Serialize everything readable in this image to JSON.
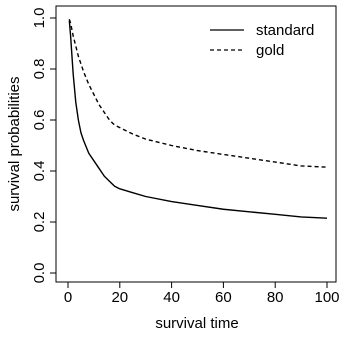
{
  "chart_data": {
    "type": "line",
    "title": "",
    "xlabel": "survival time",
    "ylabel": "survival probabilities",
    "xlim": [
      0,
      100
    ],
    "ylim": [
      0,
      1
    ],
    "grid": false,
    "legend": "top-right",
    "xticks": [
      "0",
      "20",
      "40",
      "60",
      "80",
      "100"
    ],
    "yticks": [
      "0.0",
      "0.2",
      "0.4",
      "0.6",
      "0.8",
      "1.0"
    ],
    "series": [
      {
        "name": "standard",
        "style": "solid",
        "color": "#000000",
        "x": [
          0.5,
          1,
          2,
          3,
          4,
          5,
          6,
          8,
          10,
          12,
          14,
          16,
          18,
          20,
          25,
          30,
          40,
          50,
          60,
          70,
          80,
          90,
          100
        ],
        "y": [
          0.99,
          0.93,
          0.78,
          0.67,
          0.6,
          0.55,
          0.52,
          0.47,
          0.44,
          0.41,
          0.38,
          0.36,
          0.34,
          0.33,
          0.315,
          0.3,
          0.28,
          0.265,
          0.25,
          0.24,
          0.23,
          0.22,
          0.215
        ]
      },
      {
        "name": "gold",
        "style": "dashed",
        "color": "#000000",
        "x": [
          0.5,
          1,
          2,
          3,
          4,
          5,
          6,
          8,
          10,
          12,
          14,
          16,
          18,
          20,
          25,
          30,
          40,
          50,
          60,
          70,
          80,
          90,
          100
        ],
        "y": [
          0.995,
          0.98,
          0.93,
          0.89,
          0.85,
          0.82,
          0.79,
          0.74,
          0.7,
          0.66,
          0.63,
          0.6,
          0.58,
          0.57,
          0.545,
          0.525,
          0.5,
          0.48,
          0.465,
          0.45,
          0.435,
          0.42,
          0.415
        ]
      }
    ]
  }
}
